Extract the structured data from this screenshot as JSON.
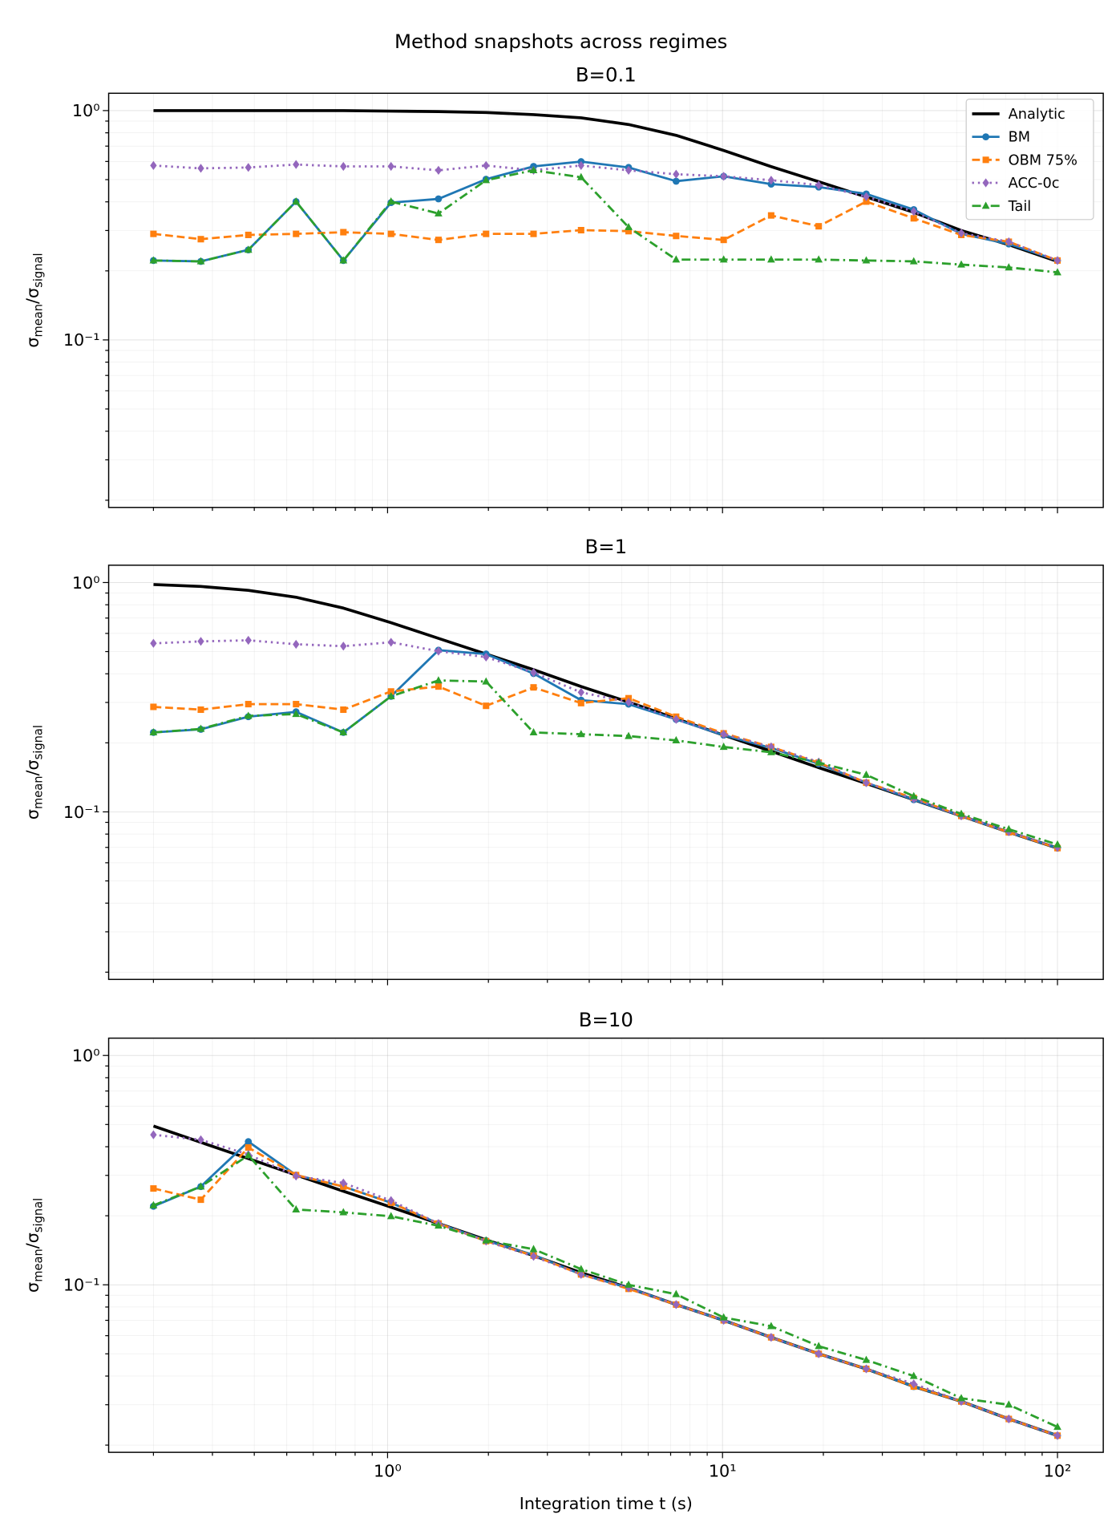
{
  "chart_data": {
    "type": "line",
    "suptitle": "Method snapshots across regimes",
    "xlabel": "Integration time t (s)",
    "ylabel_parts": [
      "σ",
      "mean",
      "/σ",
      "signal"
    ],
    "xscale": "log",
    "yscale": "log",
    "xlim": [
      0.147,
      137
    ],
    "ylim": [
      0.0186,
      1.19
    ],
    "grid": "major and minor",
    "legend_placement": "upper right of first panel",
    "x_tick_labels": [
      "10⁰",
      "10¹",
      "10²"
    ],
    "x_ticks": [
      1,
      10,
      100
    ],
    "y_tick_labels": [
      "10⁰",
      "10⁻¹"
    ],
    "y_ticks": [
      1,
      0.1
    ],
    "x": [
      0.2,
      0.277,
      0.384,
      0.533,
      0.738,
      1.024,
      1.419,
      1.968,
      2.728,
      3.782,
      5.243,
      7.269,
      10.08,
      13.97,
      19.37,
      26.86,
      37.23,
      51.62,
      71.56,
      100
    ],
    "series_styles": [
      {
        "name": "Analytic",
        "color": "#000000",
        "dash": "solid",
        "marker": "none"
      },
      {
        "name": "BM",
        "color": "#1f77b4",
        "dash": "solid",
        "marker": "circle"
      },
      {
        "name": "OBM 75%",
        "color": "#ff7f0e",
        "dash": "dashed",
        "marker": "square"
      },
      {
        "name": "ACC-0c",
        "color": "#9467bd",
        "dash": "dotted",
        "marker": "diamond"
      },
      {
        "name": "Tail",
        "color": "#2ca02c",
        "dash": "dashdot",
        "marker": "triangle"
      }
    ],
    "panels": [
      {
        "title": "B=0.1",
        "series": [
          {
            "name": "Analytic",
            "values": [
              1.0,
              1.0,
              1.0,
              1.0,
              1.0,
              0.995,
              0.99,
              0.98,
              0.96,
              0.93,
              0.87,
              0.78,
              0.67,
              0.57,
              0.49,
              0.42,
              0.36,
              0.3,
              0.26,
              0.22
            ]
          },
          {
            "name": "BM",
            "values": [
              0.222,
              0.22,
              0.247,
              0.401,
              0.222,
              0.397,
              0.412,
              0.502,
              0.571,
              0.599,
              0.565,
              0.492,
              0.517,
              0.478,
              0.464,
              0.433,
              0.37,
              0.29,
              0.262,
              0.222
            ]
          },
          {
            "name": "OBM 75%",
            "values": [
              0.29,
              0.275,
              0.287,
              0.29,
              0.295,
              0.29,
              0.273,
              0.29,
              0.29,
              0.301,
              0.298,
              0.284,
              0.273,
              0.349,
              0.313,
              0.401,
              0.339,
              0.287,
              0.268,
              0.222
            ]
          },
          {
            "name": "ACC-0c",
            "values": [
              0.576,
              0.56,
              0.565,
              0.582,
              0.571,
              0.571,
              0.549,
              0.576,
              0.549,
              0.576,
              0.549,
              0.528,
              0.517,
              0.497,
              0.473,
              0.421,
              0.363,
              0.292,
              0.268,
              0.222
            ]
          },
          {
            "name": "Tail",
            "values": [
              0.222,
              0.22,
              0.247,
              0.401,
              0.222,
              0.401,
              0.356,
              0.497,
              0.549,
              0.512,
              0.31,
              0.224,
              0.224,
              0.224,
              0.224,
              0.222,
              0.22,
              0.213,
              0.207,
              0.197
            ]
          }
        ]
      },
      {
        "title": "B=1",
        "series": [
          {
            "name": "Analytic",
            "values": [
              0.98,
              0.961,
              0.924,
              0.863,
              0.774,
              0.668,
              0.571,
              0.488,
              0.417,
              0.352,
              0.301,
              0.255,
              0.216,
              0.184,
              0.156,
              0.133,
              0.113,
              0.096,
              0.0815,
              0.0695
            ]
          },
          {
            "name": "BM",
            "values": [
              0.222,
              0.229,
              0.26,
              0.273,
              0.222,
              0.319,
              0.507,
              0.488,
              0.401,
              0.307,
              0.295,
              0.253,
              0.216,
              0.19,
              0.162,
              0.134,
              0.113,
              0.096,
              0.0815,
              0.0695
            ]
          },
          {
            "name": "OBM 75%",
            "values": [
              0.287,
              0.279,
              0.295,
              0.295,
              0.279,
              0.335,
              0.352,
              0.29,
              0.349,
              0.298,
              0.313,
              0.26,
              0.22,
              0.192,
              0.164,
              0.134,
              0.115,
              0.096,
              0.0815,
              0.0695
            ]
          },
          {
            "name": "ACC-0c",
            "values": [
              0.543,
              0.554,
              0.56,
              0.538,
              0.528,
              0.549,
              0.502,
              0.473,
              0.405,
              0.332,
              0.301,
              0.253,
              0.218,
              0.192,
              0.165,
              0.134,
              0.114,
              0.096,
              0.082,
              0.07
            ]
          },
          {
            "name": "Tail",
            "values": [
              0.222,
              0.23,
              0.262,
              0.267,
              0.222,
              0.319,
              0.374,
              0.37,
              0.222,
              0.218,
              0.214,
              0.205,
              0.192,
              0.182,
              0.164,
              0.145,
              0.117,
              0.098,
              0.084,
              0.072
            ]
          }
        ]
      },
      {
        "title": "B=10",
        "series": [
          {
            "name": "Analytic",
            "values": [
              0.492,
              0.418,
              0.355,
              0.301,
              0.256,
              0.218,
              0.185,
              0.157,
              0.134,
              0.113,
              0.097,
              0.082,
              0.07,
              0.059,
              0.05,
              0.043,
              0.036,
              0.031,
              0.026,
              0.022
            ]
          },
          {
            "name": "BM",
            "values": [
              0.22,
              0.268,
              0.421,
              0.301,
              0.268,
              0.228,
              0.185,
              0.156,
              0.135,
              0.111,
              0.097,
              0.082,
              0.07,
              0.059,
              0.05,
              0.043,
              0.036,
              0.031,
              0.026,
              0.022
            ]
          },
          {
            "name": "OBM 75%",
            "values": [
              0.263,
              0.235,
              0.397,
              0.301,
              0.268,
              0.228,
              0.185,
              0.155,
              0.134,
              0.111,
              0.096,
              0.082,
              0.07,
              0.059,
              0.05,
              0.043,
              0.036,
              0.031,
              0.026,
              0.022
            ]
          },
          {
            "name": "ACC-0c",
            "values": [
              0.451,
              0.429,
              0.37,
              0.298,
              0.278,
              0.233,
              0.185,
              0.155,
              0.133,
              0.111,
              0.097,
              0.082,
              0.07,
              0.059,
              0.05,
              0.043,
              0.037,
              0.031,
              0.026,
              0.022
            ]
          },
          {
            "name": "Tail",
            "values": [
              0.222,
              0.268,
              0.367,
              0.213,
              0.207,
              0.199,
              0.181,
              0.156,
              0.143,
              0.117,
              0.1,
              0.091,
              0.072,
              0.066,
              0.054,
              0.047,
              0.04,
              0.032,
              0.03,
              0.024
            ]
          }
        ]
      }
    ]
  }
}
